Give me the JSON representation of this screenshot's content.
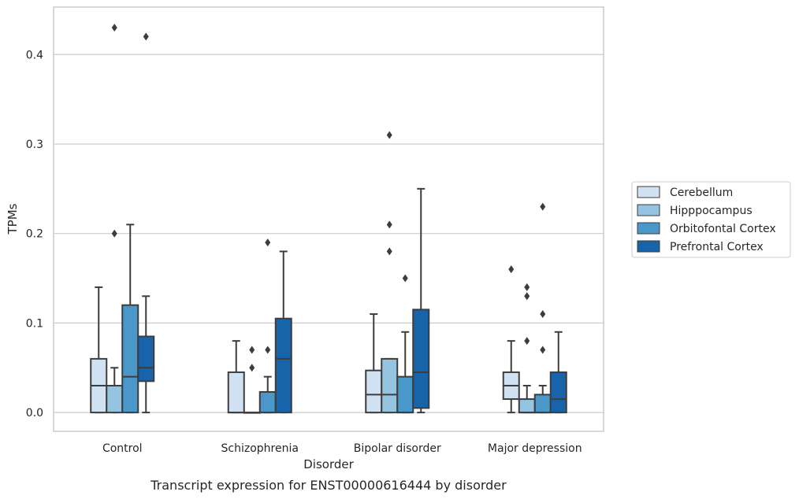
{
  "chart_data": {
    "type": "box",
    "xlabel": "Disorder",
    "ylabel": "TPMs",
    "caption": "Transcript expression for ENST00000616444 by disorder",
    "ylim": [
      -0.021,
      0.453
    ],
    "yticks": [
      "0.0",
      "0.1",
      "0.2",
      "0.3",
      "0.4"
    ],
    "grid": true,
    "legend_position": "right",
    "categories": [
      "Control",
      "Schizophrenia",
      "Bipolar disorder",
      "Major depression"
    ],
    "series": [
      {
        "name": "Cerebellum",
        "color": "#d0e1f2",
        "boxes": [
          {
            "q1": 0.0,
            "median": 0.03,
            "q3": 0.06,
            "whislo": 0.0,
            "whishi": 0.14,
            "fliers": []
          },
          {
            "q1": 0.0,
            "median": 0.0,
            "q3": 0.045,
            "whislo": 0.0,
            "whishi": 0.08,
            "fliers": []
          },
          {
            "q1": 0.0,
            "median": 0.02,
            "q3": 0.047,
            "whislo": 0.0,
            "whishi": 0.11,
            "fliers": []
          },
          {
            "q1": 0.015,
            "median": 0.03,
            "q3": 0.045,
            "whislo": 0.0,
            "whishi": 0.08,
            "fliers": [
              0.16
            ]
          }
        ]
      },
      {
        "name": "Hipppocampus",
        "color": "#94c4df",
        "boxes": [
          {
            "q1": 0.0,
            "median": 0.03,
            "q3": 0.03,
            "whislo": 0.0,
            "whishi": 0.05,
            "fliers": [
              0.2,
              0.43
            ]
          },
          {
            "q1": 0.0,
            "median": 0.0,
            "q3": 0.0,
            "whislo": 0.0,
            "whishi": 0.0,
            "fliers": [
              0.05,
              0.07
            ]
          },
          {
            "q1": 0.0,
            "median": 0.02,
            "q3": 0.06,
            "whislo": 0.0,
            "whishi": 0.06,
            "fliers": [
              0.18,
              0.21,
              0.31
            ]
          },
          {
            "q1": 0.0,
            "median": 0.0,
            "q3": 0.015,
            "whislo": 0.0,
            "whishi": 0.03,
            "fliers": [
              0.08,
              0.13,
              0.14
            ]
          }
        ]
      },
      {
        "name": "Orbitofontal Cortex",
        "color": "#4a98c9",
        "boxes": [
          {
            "q1": 0.0,
            "median": 0.04,
            "q3": 0.12,
            "whislo": 0.0,
            "whishi": 0.21,
            "fliers": []
          },
          {
            "q1": 0.0,
            "median": 0.0,
            "q3": 0.023,
            "whislo": 0.0,
            "whishi": 0.04,
            "fliers": [
              0.07,
              0.19
            ]
          },
          {
            "q1": 0.0,
            "median": 0.0,
            "q3": 0.04,
            "whislo": 0.0,
            "whishi": 0.09,
            "fliers": [
              0.15
            ]
          },
          {
            "q1": 0.0,
            "median": 0.0,
            "q3": 0.02,
            "whislo": 0.0,
            "whishi": 0.03,
            "fliers": [
              0.07,
              0.11,
              0.23
            ]
          }
        ]
      },
      {
        "name": "Prefrontal Cortex",
        "color": "#1764ab",
        "boxes": [
          {
            "q1": 0.035,
            "median": 0.05,
            "q3": 0.085,
            "whislo": 0.0,
            "whishi": 0.13,
            "fliers": [
              0.42
            ]
          },
          {
            "q1": 0.0,
            "median": 0.06,
            "q3": 0.105,
            "whislo": 0.0,
            "whishi": 0.18,
            "fliers": []
          },
          {
            "q1": 0.005,
            "median": 0.045,
            "q3": 0.115,
            "whislo": 0.0,
            "whishi": 0.25,
            "fliers": []
          },
          {
            "q1": 0.0,
            "median": 0.015,
            "q3": 0.045,
            "whislo": 0.0,
            "whishi": 0.09,
            "fliers": []
          }
        ]
      }
    ]
  }
}
